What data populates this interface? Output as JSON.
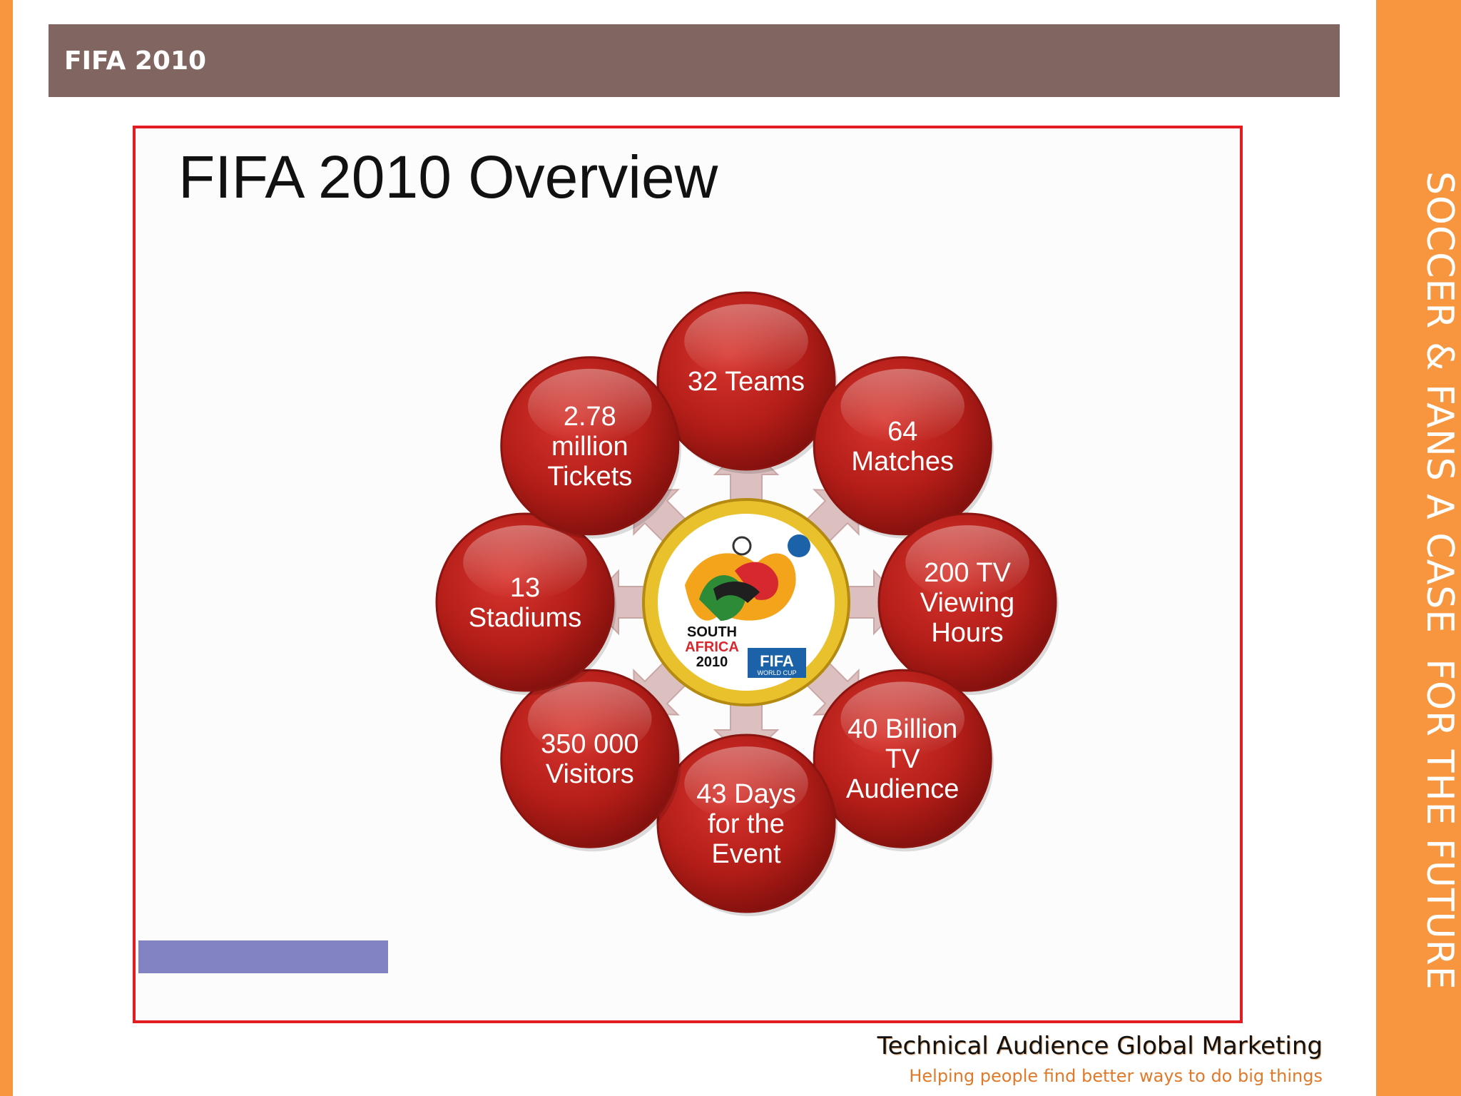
{
  "header": {
    "title": "FIFA 2010"
  },
  "side_banner": {
    "text": "SOCCER & FANS A CASE  FOR THE FUTURE"
  },
  "slide": {
    "title": "FIFA 2010 Overview",
    "center_logo": {
      "lines": [
        "SOUTH",
        "AFRICA",
        "2010"
      ],
      "brand": "FIFA",
      "brand_sub": "WORLD CUP"
    },
    "nodes": [
      {
        "id": "teams",
        "lines": [
          "32 Teams"
        ]
      },
      {
        "id": "matches",
        "lines": [
          "64",
          "Matches"
        ]
      },
      {
        "id": "tv-hours",
        "lines": [
          "200 TV",
          "Viewing",
          "Hours"
        ]
      },
      {
        "id": "tv-audience",
        "lines": [
          "40 Billion",
          "TV",
          "Audience"
        ]
      },
      {
        "id": "days",
        "lines": [
          "43 Days",
          "for the",
          "Event"
        ]
      },
      {
        "id": "visitors",
        "lines": [
          "350 000",
          "Visitors"
        ]
      },
      {
        "id": "stadiums",
        "lines": [
          "13",
          "Stadiums"
        ]
      },
      {
        "id": "tickets",
        "lines": [
          "2.78",
          "million",
          "Tickets"
        ]
      }
    ],
    "colors": {
      "node": "#b8211c",
      "arrow": "#dcc0c0",
      "frame": "#e31b23"
    }
  },
  "footer": {
    "company": "Technical Audience Global Marketing",
    "tagline": "Helping people find better ways to do big things"
  }
}
